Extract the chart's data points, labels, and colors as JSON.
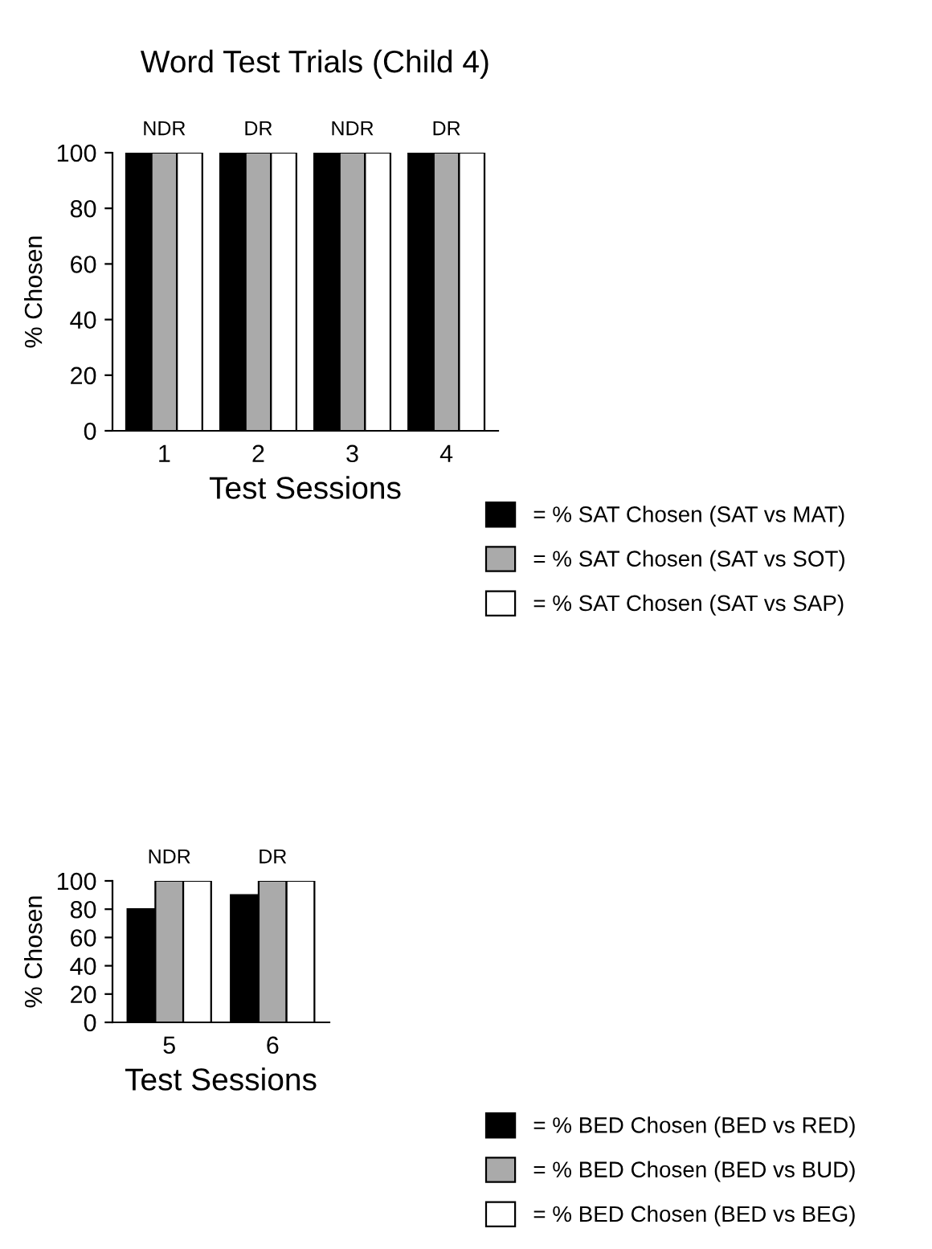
{
  "chart_data": [
    {
      "type": "bar",
      "title": "Word Test Trials (Child 4)",
      "xlabel": "Test Sessions",
      "ylabel": "% Chosen",
      "categories": [
        "1",
        "2",
        "3",
        "4"
      ],
      "ylim": [
        0,
        100
      ],
      "yticks": [
        0,
        20,
        40,
        60,
        80,
        100
      ],
      "grid": false,
      "legend": "bottom right",
      "annotations": [
        {
          "text": "NDR",
          "x": "1",
          "y": 100
        },
        {
          "text": "DR",
          "x": "2",
          "y": 100
        },
        {
          "text": "NDR",
          "x": "3",
          "y": 100
        },
        {
          "text": "DR",
          "x": "4",
          "y": 100
        }
      ],
      "series": [
        {
          "name": "= % SAT Chosen (SAT vs MAT)",
          "color": "#000000",
          "values": [
            100,
            100,
            100,
            100
          ]
        },
        {
          "name": "= % SAT Chosen (SAT vs SOT)",
          "color": "#aaaaaa",
          "values": [
            100,
            100,
            100,
            100
          ]
        },
        {
          "name": "= % SAT Chosen (SAT vs SAP)",
          "color": "#ffffff",
          "values": [
            100,
            100,
            100,
            100
          ]
        }
      ]
    },
    {
      "type": "bar",
      "xlabel": "Test Sessions",
      "ylabel": "% Chosen",
      "categories": [
        "5",
        "6"
      ],
      "ylim": [
        0,
        100
      ],
      "yticks": [
        0,
        20,
        40,
        60,
        80,
        100
      ],
      "grid": false,
      "legend": "bottom right",
      "annotations": [
        {
          "text": "NDR",
          "x": "5",
          "y": 100
        },
        {
          "text": "DR",
          "x": "6",
          "y": 100
        }
      ],
      "series": [
        {
          "name": "= % BED Chosen (BED vs RED)",
          "color": "#000000",
          "values": [
            80,
            90
          ]
        },
        {
          "name": "= % BED Chosen (BED vs BUD)",
          "color": "#aaaaaa",
          "values": [
            100,
            100
          ]
        },
        {
          "name": "= % BED Chosen (BED vs BEG)",
          "color": "#ffffff",
          "values": [
            100,
            100
          ]
        }
      ]
    }
  ]
}
